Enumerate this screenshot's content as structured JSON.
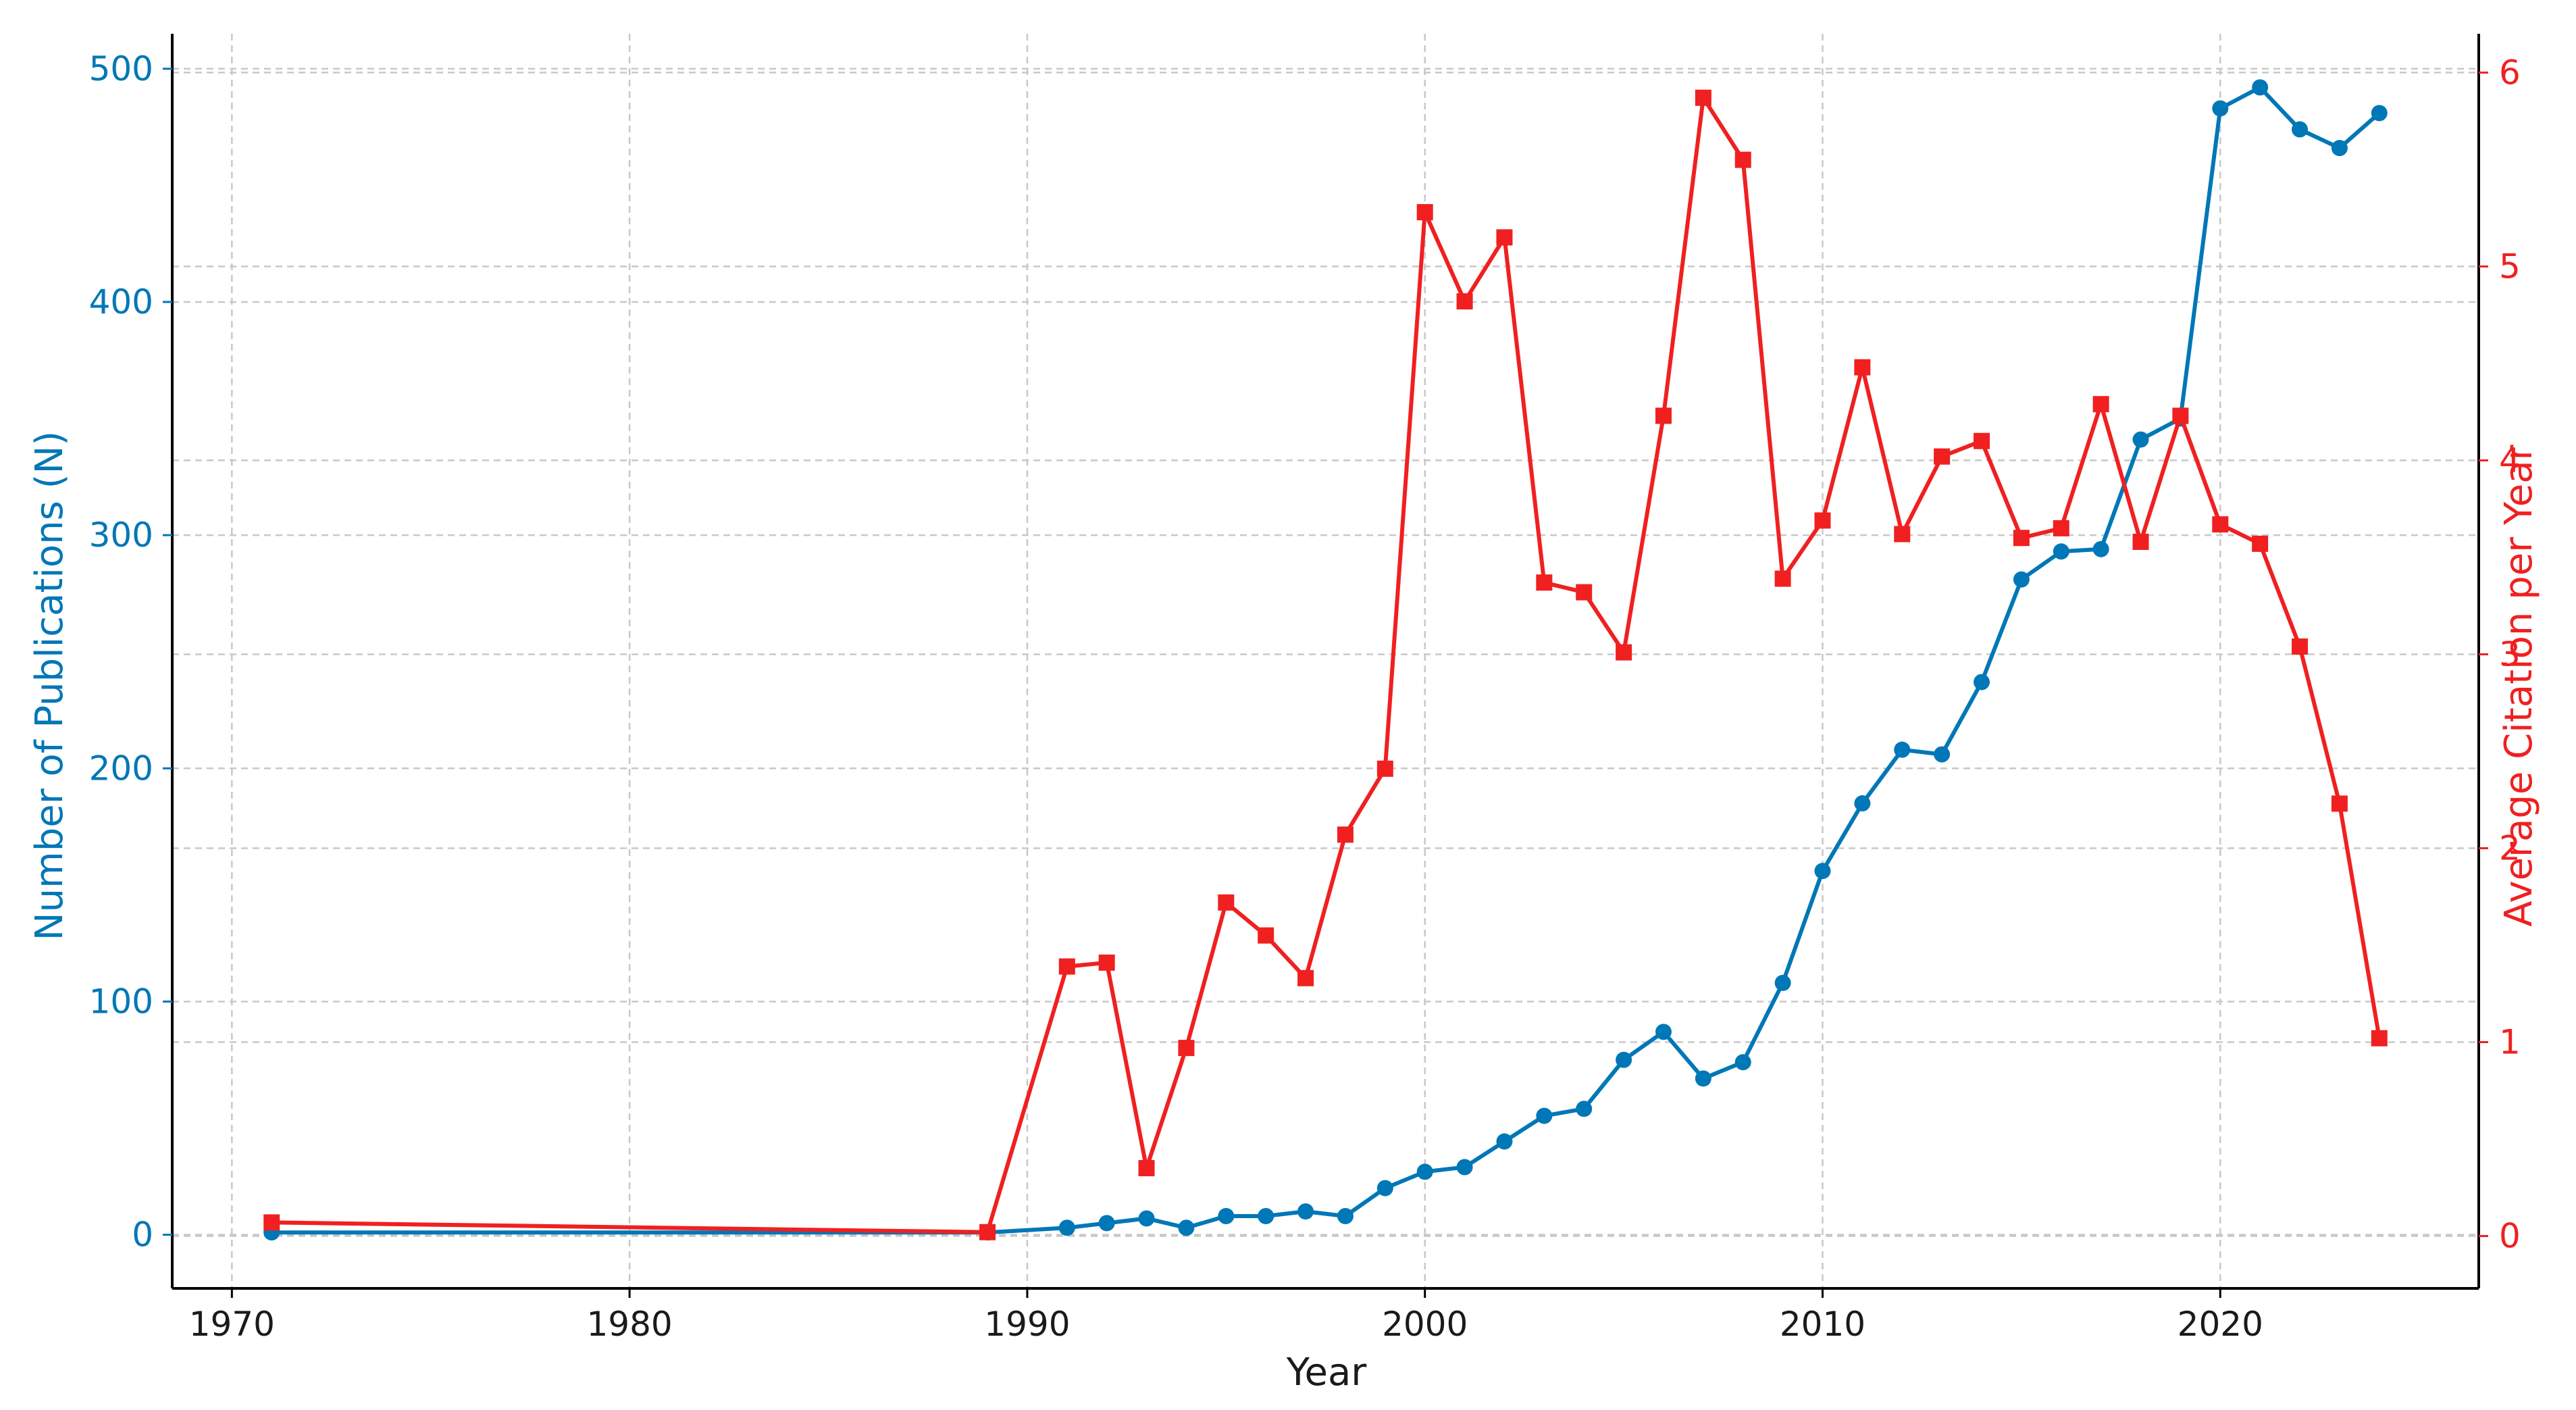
{
  "chart_data": {
    "type": "line",
    "xlabel": "Year",
    "ylabel_left": "Number of Publications (N)",
    "ylabel_right": "Average Citation per Year",
    "xlim": [
      1968.5,
      2026.5
    ],
    "ylim_left": [
      -23,
      515
    ],
    "ylim_right": [
      -0.27,
      6.2
    ],
    "x_ticks": [
      1970,
      1980,
      1990,
      2000,
      2010,
      2020
    ],
    "y_ticks_left": [
      0,
      100,
      200,
      300,
      400,
      500
    ],
    "y_ticks_right": [
      0,
      1,
      2,
      3,
      4,
      5,
      6
    ],
    "grid": true,
    "series": [
      {
        "axis": "left",
        "color": "#0077b6",
        "marker": "circle",
        "x": [
          1971,
          1989,
          1991,
          1992,
          1993,
          1994,
          1995,
          1996,
          1997,
          1998,
          1999,
          2000,
          2001,
          2002,
          2003,
          2004,
          2005,
          2006,
          2007,
          2008,
          2009,
          2010,
          2011,
          2012,
          2013,
          2014,
          2015,
          2016,
          2017,
          2018,
          2019,
          2020,
          2021,
          2022,
          2023,
          2024
        ],
        "y": [
          1,
          1,
          3,
          5,
          7,
          3,
          8,
          8,
          10,
          8,
          20,
          27,
          29,
          40,
          51,
          54,
          75,
          87,
          67,
          74,
          108,
          156,
          185,
          208,
          206,
          237,
          281,
          293,
          294,
          341,
          350,
          483,
          492,
          474,
          466,
          481
        ]
      },
      {
        "axis": "right",
        "color": "#f02020",
        "marker": "square",
        "x": [
          1971,
          1989,
          1991,
          1992,
          1993,
          1994,
          1995,
          1996,
          1997,
          1998,
          1999,
          2000,
          2001,
          2002,
          2003,
          2004,
          2005,
          2006,
          2007,
          2008,
          2009,
          2010,
          2011,
          2012,
          2013,
          2014,
          2015,
          2016,
          2017,
          2018,
          2019,
          2020,
          2021,
          2022,
          2023,
          2024
        ],
        "y": [
          0.07,
          0.02,
          1.39,
          1.41,
          0.35,
          0.97,
          1.72,
          1.55,
          1.33,
          2.07,
          2.41,
          5.28,
          4.82,
          5.15,
          3.37,
          3.32,
          3.01,
          4.23,
          5.87,
          5.55,
          3.39,
          3.69,
          4.48,
          3.62,
          4.02,
          4.1,
          3.6,
          3.65,
          4.29,
          3.58,
          4.23,
          3.67,
          3.57,
          3.04,
          2.23,
          1.02
        ]
      }
    ]
  }
}
